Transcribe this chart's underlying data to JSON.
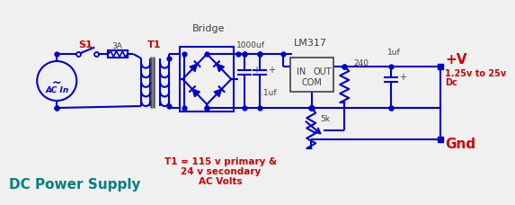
{
  "bg_color": "#f0f0f0",
  "wire_color": "#0000cc",
  "wire_lw": 1.5,
  "red": "#cc0000",
  "teal": "#008080",
  "dark": "#404040",
  "title": "DC Power Supply",
  "note_line1": "T1 = 115 v primary &",
  "note_line2": "24 v secondary",
  "note_line3": "AC Volts",
  "s1_label": "S1",
  "t1_label": "T1",
  "bridge_label": "Bridge",
  "lm317_label": "LM317",
  "cap1_label": "1000uf",
  "cap2_label": ".1uf",
  "res1_label": "240",
  "pot_label": "5k",
  "cap3_label": "1uf",
  "fuse_label": "3A",
  "acin_label": "AC In",
  "vplus_label": "+V",
  "gnd_label": "Gnd",
  "range_label1": "1.25v to 25v",
  "range_label2": "Dc",
  "in_label": "IN",
  "out_label": "OUT",
  "com_label": "COM"
}
